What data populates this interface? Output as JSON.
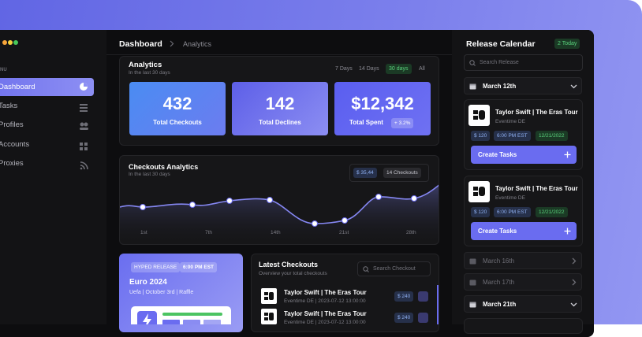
{
  "window": {
    "menu_label": "NU"
  },
  "sidebar": {
    "items": [
      "Dashboard",
      "Tasks",
      "Profiles",
      "Accounts",
      "Proxies"
    ]
  },
  "breadcrumb": [
    "Dashboard",
    "Analytics"
  ],
  "analytics": {
    "title": "Analytics",
    "subtitle": "In the last 30 days",
    "ranges": [
      "7 Days",
      "14 Days",
      "30 days",
      "All"
    ],
    "stats": [
      {
        "value": "432",
        "label": "Total Checkouts"
      },
      {
        "value": "142",
        "label": "Total Declines"
      },
      {
        "value": "$12,342",
        "label": "Total Spent",
        "change": "+ 3.2%"
      }
    ]
  },
  "checkouts_analytics": {
    "title": "Checkouts Analytics",
    "subtitle": "In the last 30 days",
    "badges": [
      "$ 35,44",
      "14 Checkouts"
    ],
    "x_labels": [
      "1st",
      "7th",
      "14th",
      "21st",
      "28th"
    ]
  },
  "hyped_release": {
    "badge": "HYPED RELEASE",
    "time": "6:00 PM EST",
    "title": "Euro 2024",
    "details": "Uefa | October 3rd | Raffle"
  },
  "latest_checkouts": {
    "title": "Latest Checkouts",
    "subtitle": "Overview your total checkouts",
    "search_placeholder": "Search Checkout",
    "rows": [
      {
        "name": "Taylor Swift | The Eras Tour",
        "meta": "Eventime DE | 2023-07-12 13:00:00",
        "price": "$ 240"
      },
      {
        "name": "Taylor Swift | The Eras Tour",
        "meta": "Eventime DE | 2023-07-12 13:00:00",
        "price": "$ 240"
      }
    ]
  },
  "release_calendar": {
    "title": "Release Calendar",
    "today": "2 Today",
    "search_placeholder": "Search Release",
    "days": [
      {
        "date": "March 12th",
        "events": [
          {
            "name": "Taylor Swift | The Eras Tour",
            "venue": "Eventime DE",
            "price": "$ 120",
            "time": "6:00 PM EST",
            "date": "12/21/2022",
            "action": "Create Tasks"
          },
          {
            "name": "Taylor Swift | The Eras Tour",
            "venue": "Eventime DE",
            "price": "$ 120",
            "time": "6:00 PM EST",
            "date": "12/21/2022",
            "action": "Create Tasks"
          }
        ]
      },
      {
        "date": "March 16th"
      },
      {
        "date": "March 17th"
      },
      {
        "date": "March 21th"
      }
    ]
  }
}
